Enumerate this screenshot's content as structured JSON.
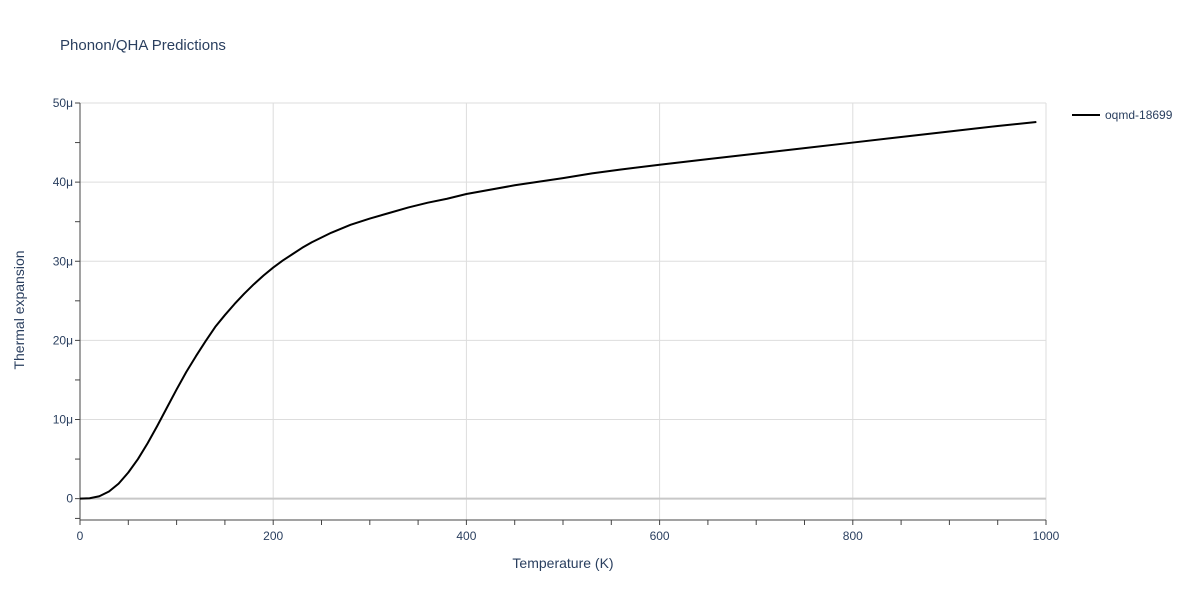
{
  "chart_data": {
    "type": "line",
    "title": "Phonon/QHA Predictions",
    "xlabel": "Temperature (K)",
    "ylabel": "Thermal expansion",
    "xlim": [
      0,
      1000
    ],
    "ylim": [
      -2.7e-06,
      5e-05
    ],
    "x_ticks": [
      0,
      200,
      400,
      600,
      800,
      1000
    ],
    "x_tick_labels": [
      "0",
      "200",
      "400",
      "600",
      "800",
      "1000"
    ],
    "y_ticks": [
      0,
      1e-05,
      2e-05,
      3e-05,
      4e-05,
      5e-05
    ],
    "y_tick_labels": [
      "0",
      "10μ",
      "20μ",
      "30μ",
      "40μ",
      "50μ"
    ],
    "grid": true,
    "legend_position": "top-right",
    "series": [
      {
        "name": "oqmd-18699",
        "color": "#000000",
        "x": [
          0,
          10,
          20,
          30,
          40,
          50,
          60,
          70,
          80,
          90,
          100,
          110,
          120,
          130,
          140,
          150,
          160,
          170,
          180,
          190,
          200,
          210,
          220,
          230,
          240,
          250,
          260,
          270,
          280,
          290,
          300,
          320,
          340,
          360,
          380,
          400,
          450,
          500,
          530,
          560,
          600,
          650,
          700,
          750,
          800,
          850,
          900,
          950,
          990
        ],
        "y": [
          0,
          5e-08,
          3e-07,
          9e-07,
          1.9e-06,
          3.3e-06,
          5e-06,
          7e-06,
          9.2e-06,
          1.15e-05,
          1.38e-05,
          1.6e-05,
          1.8e-05,
          1.99e-05,
          2.17e-05,
          2.32e-05,
          2.46e-05,
          2.59e-05,
          2.71e-05,
          2.82e-05,
          2.92e-05,
          3.01e-05,
          3.09e-05,
          3.17e-05,
          3.24e-05,
          3.3e-05,
          3.36e-05,
          3.41e-05,
          3.46e-05,
          3.5e-05,
          3.54e-05,
          3.61e-05,
          3.68e-05,
          3.74e-05,
          3.79e-05,
          3.85e-05,
          3.96e-05,
          4.05e-05,
          4.11e-05,
          4.16e-05,
          4.22e-05,
          4.29e-05,
          4.36e-05,
          4.43e-05,
          4.5e-05,
          4.57e-05,
          4.64e-05,
          4.71e-05,
          4.76e-05
        ]
      }
    ]
  }
}
